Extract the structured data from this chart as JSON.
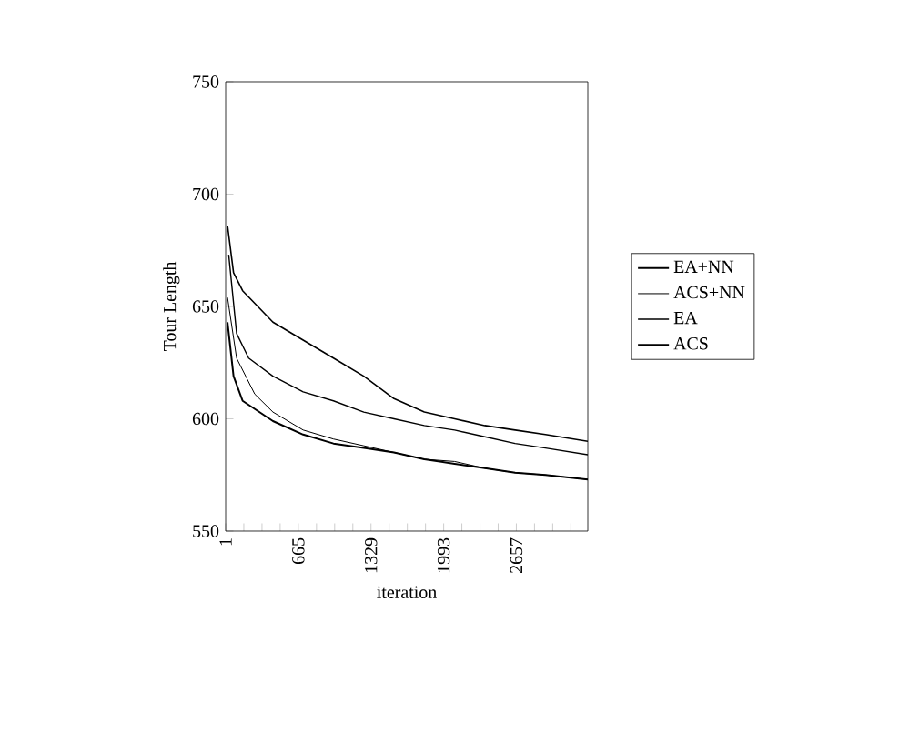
{
  "chart_data": {
    "type": "line",
    "xlabel": "iteration",
    "ylabel": "Tour Length",
    "xlim": [
      1,
      3310
    ],
    "ylim": [
      550,
      750
    ],
    "xticks": [
      1,
      {
        "value": 167,
        "label": null
      },
      {
        "value": 333,
        "label": null
      },
      {
        "value": 499,
        "label": null
      },
      665,
      {
        "value": 831,
        "label": null
      },
      {
        "value": 997,
        "label": null
      },
      {
        "value": 1163,
        "label": null
      },
      1329,
      {
        "value": 1495,
        "label": null
      },
      {
        "value": 1661,
        "label": null
      },
      {
        "value": 1827,
        "label": null
      },
      1993,
      {
        "value": 2159,
        "label": null
      },
      {
        "value": 2325,
        "label": null
      },
      {
        "value": 2491,
        "label": null
      },
      2657,
      {
        "value": 2823,
        "label": null
      },
      {
        "value": 2989,
        "label": null
      },
      {
        "value": 3155,
        "label": null
      }
    ],
    "yticks": [
      550,
      600,
      650,
      700,
      750
    ],
    "legend": "right",
    "grid": false,
    "marker": "none",
    "line_style": "solid",
    "series": [
      {
        "name": "EA+NN",
        "color": "#000000",
        "x": [
          18,
          73,
          156,
          433,
          709,
          986,
          1263,
          1539,
          1816,
          2093,
          2369,
          2646,
          2923,
          3310
        ],
        "values": [
          643,
          619,
          608,
          599,
          593,
          589,
          587,
          585,
          582,
          580,
          578,
          576,
          575,
          573
        ]
      },
      {
        "name": "ACS+NN",
        "color": "#000000",
        "x": [
          18,
          101,
          267,
          433,
          709,
          986,
          1263,
          1539,
          1816,
          2093,
          2369,
          2646,
          2923,
          3310
        ],
        "values": [
          654,
          627,
          611,
          603,
          595,
          591,
          588,
          585,
          582,
          581,
          578,
          576,
          575,
          573
        ]
      },
      {
        "name": "EA",
        "color": "#000000",
        "x": [
          29,
          101,
          211,
          433,
          709,
          986,
          1263,
          1539,
          1816,
          2093,
          2369,
          2646,
          2923,
          3310
        ],
        "values": [
          673,
          638,
          627,
          619,
          612,
          608,
          603,
          600,
          597,
          595,
          592,
          589,
          587,
          584
        ]
      },
      {
        "name": "ACS",
        "color": "#000000",
        "x": [
          18,
          73,
          156,
          433,
          709,
          986,
          1263,
          1539,
          1816,
          2093,
          2369,
          2646,
          2923,
          3310
        ],
        "values": [
          686,
          665,
          657,
          643,
          635,
          627,
          619,
          609,
          603,
          600,
          597,
          595,
          593,
          590
        ]
      }
    ]
  }
}
